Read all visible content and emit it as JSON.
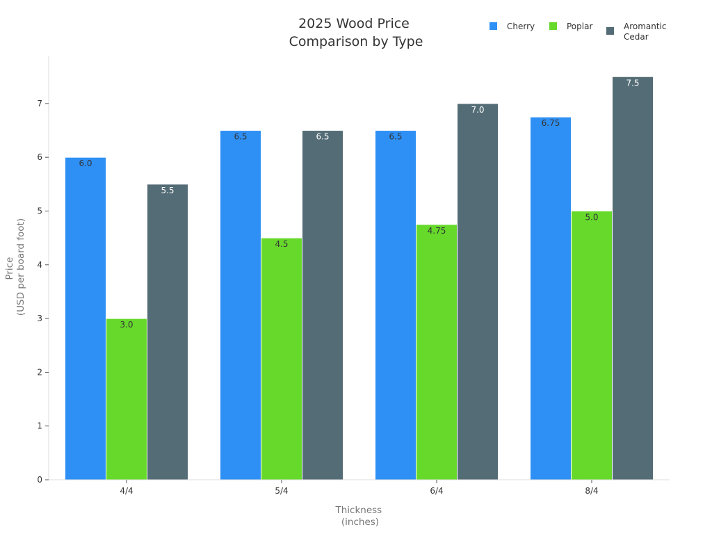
{
  "chart_data": {
    "type": "bar",
    "title_lines": [
      "2025 Wood Price",
      "Comparison by Type"
    ],
    "xlabel_lines": [
      "Thickness",
      "(inches)"
    ],
    "ylabel_lines": [
      "Price",
      "(USD per board foot)"
    ],
    "categories": [
      "4/4",
      "5/4",
      "6/4",
      "8/4"
    ],
    "series": [
      {
        "name": "Cherry",
        "color": "#2e90f5",
        "label_color": "#333333",
        "values": [
          6.0,
          6.5,
          6.5,
          6.75
        ],
        "labels": [
          "6.0",
          "6.5",
          "6.5",
          "6.75"
        ]
      },
      {
        "name": "Poplar",
        "color": "#66d92b",
        "label_color": "#333333",
        "values": [
          3.0,
          4.5,
          4.75,
          5.0
        ],
        "labels": [
          "3.0",
          "4.5",
          "4.75",
          "5.0"
        ]
      },
      {
        "name_lines": [
          "Aromantic",
          "Cedar"
        ],
        "color": "#546c75",
        "label_color": "#ffffff",
        "values": [
          5.5,
          6.5,
          7.0,
          7.5
        ],
        "labels": [
          "5.5",
          "6.5",
          "7.0",
          "7.5"
        ]
      }
    ],
    "yticks": [
      0,
      1,
      2,
      3,
      4,
      5,
      6,
      7
    ],
    "ylim": [
      0,
      7.7
    ],
    "grid": false,
    "legend_position": "top-right"
  }
}
